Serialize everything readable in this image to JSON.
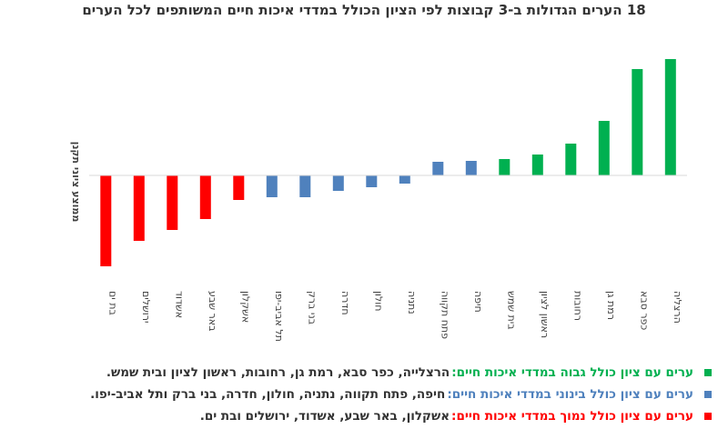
{
  "colors": {
    "high": "#00b050",
    "medium": "#4f81bd",
    "low": "#ff0000",
    "axis": "#d9d9d9"
  },
  "chart_data": {
    "type": "bar",
    "title": "18 הערים הגדולות ב-3 קבוצות לפי הציון הכולל במדדי איכות חיים המשותפים לכל הערים",
    "xlabel": "",
    "ylabel": "ממוצע ציוני תקנן",
    "ylim": [
      -1.1,
      1.35
    ],
    "grid": false,
    "categories": [
      "בת ים",
      "ירושלים",
      "אשדוד",
      "באר שבע",
      "אשקלון",
      "תל אביב-יפו",
      "בני ברק",
      "חדרה",
      "חולון",
      "נתניה",
      "פתח תקווה",
      "חיפה",
      "בית שמש",
      "ראשון לציון",
      "רחובות",
      "רמת גן",
      "כפר סבא",
      "הרצליה"
    ],
    "values": [
      -1.0,
      -0.72,
      -0.6,
      -0.48,
      -0.27,
      -0.24,
      -0.24,
      -0.17,
      -0.13,
      -0.09,
      0.15,
      0.16,
      0.18,
      0.23,
      0.35,
      0.6,
      1.17,
      1.28
    ],
    "groups": [
      "low",
      "low",
      "low",
      "low",
      "low",
      "medium",
      "medium",
      "medium",
      "medium",
      "medium",
      "medium",
      "medium",
      "high",
      "high",
      "high",
      "high",
      "high",
      "high"
    ]
  },
  "legend": [
    {
      "key": "high",
      "group": "ערים עם ציון כולל גבוה במדדי איכות חיים:",
      "cities": "הרצלייה, כפר סבא, רמת גן, רחובות, ראשון לציון ובית שמש."
    },
    {
      "key": "medium",
      "group": "ערים עם ציון כולל בינוני במדדי איכות חיים:",
      "cities": "חיפה, פתח תקווה, נתניה, חולון, חדרה, בני ברק ותל אביב-יפו."
    },
    {
      "key": "low",
      "group": "ערים עם ציון כולל נמוך במדדי איכות חיים:",
      "cities": "אשקלון, באר שבע, אשדוד, ירושלים ובת ים."
    }
  ]
}
